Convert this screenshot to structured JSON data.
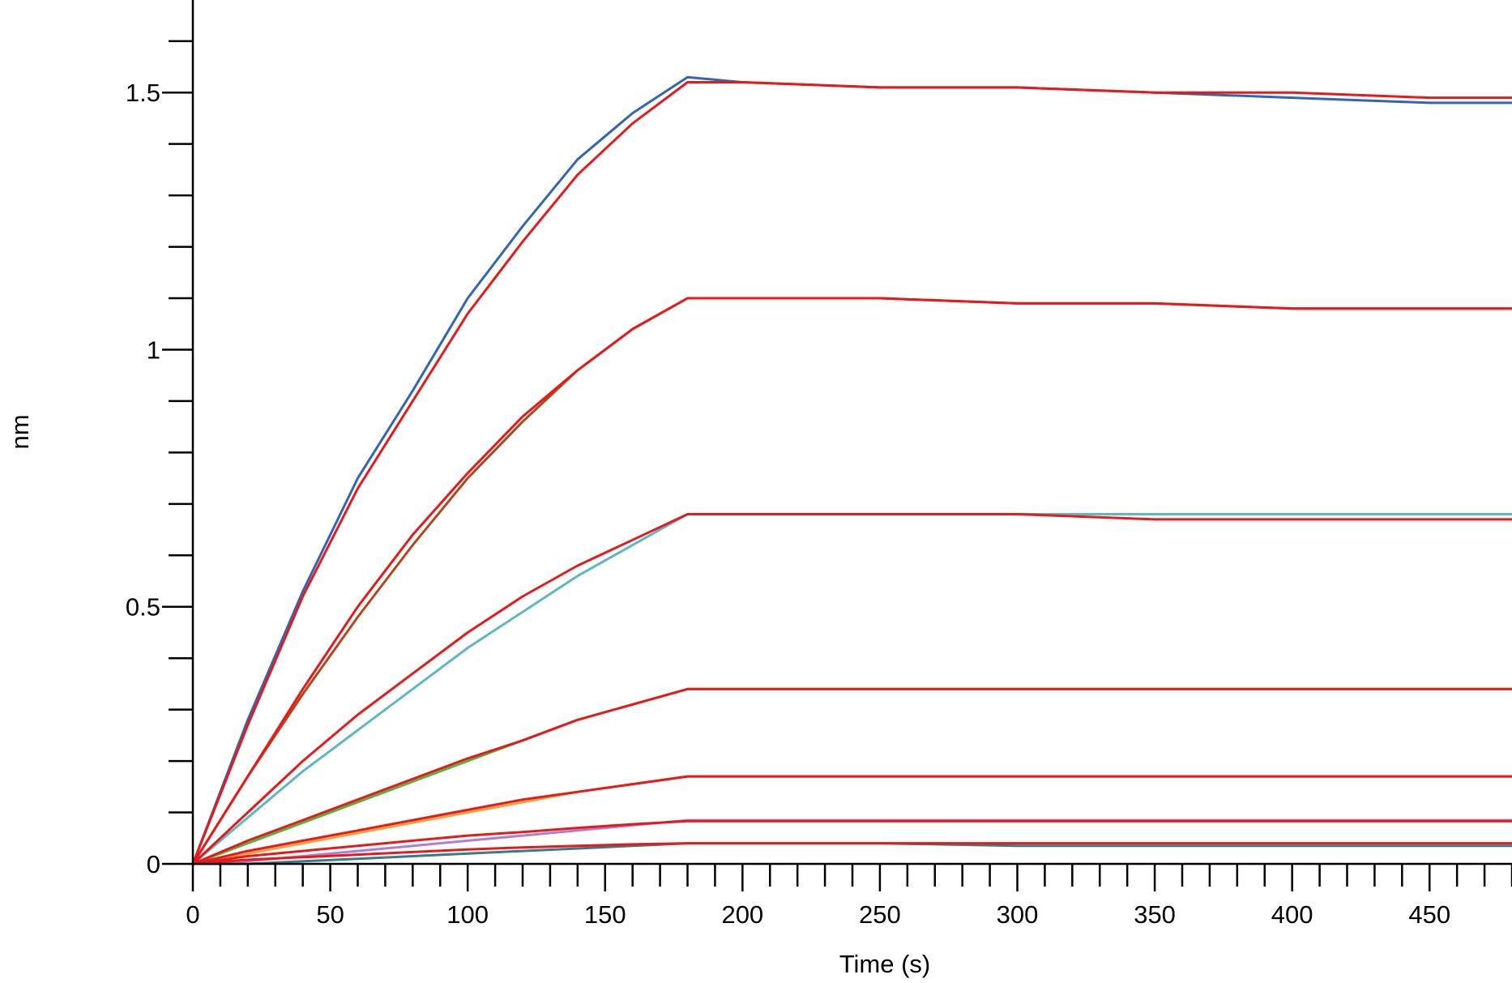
{
  "chart_data": {
    "type": "line",
    "title": "",
    "xlabel": "Time (s)",
    "ylabel": "nm",
    "xlim": [
      0,
      480
    ],
    "ylim": [
      0,
      1.68
    ],
    "x_ticks": [
      0,
      50,
      100,
      150,
      200,
      250,
      300,
      350,
      400,
      450
    ],
    "x_tick_labels": [
      "0",
      "50",
      "100",
      "150",
      "200",
      "250",
      "300",
      "350",
      "400",
      "450"
    ],
    "y_ticks": [
      0,
      0.5,
      1,
      1.5
    ],
    "y_tick_labels": [
      "0",
      "0.5",
      "1",
      "1.5"
    ],
    "grid": false,
    "legend": "none",
    "association_end": 180,
    "series": [
      {
        "color": "#3465b4",
        "fit_color": "#e41a1c",
        "x": [
          0,
          20,
          40,
          60,
          80,
          100,
          120,
          140,
          160,
          180,
          200,
          250,
          300,
          350,
          400,
          450,
          480
        ],
        "y": [
          0,
          0.28,
          0.53,
          0.75,
          0.92,
          1.1,
          1.24,
          1.37,
          1.46,
          1.53,
          1.52,
          1.51,
          1.51,
          1.5,
          1.49,
          1.48,
          1.48
        ],
        "fit_y": [
          0,
          0.27,
          0.52,
          0.73,
          0.9,
          1.07,
          1.21,
          1.34,
          1.44,
          1.52,
          1.52,
          1.51,
          1.51,
          1.5,
          1.5,
          1.49,
          1.49
        ]
      },
      {
        "color": "#b5461a",
        "fit_color": "#e41a1c",
        "x": [
          0,
          20,
          40,
          60,
          80,
          100,
          120,
          140,
          160,
          180,
          200,
          250,
          300,
          350,
          400,
          450,
          480
        ],
        "y": [
          0,
          0.17,
          0.33,
          0.48,
          0.62,
          0.75,
          0.86,
          0.96,
          1.04,
          1.1,
          1.1,
          1.1,
          1.09,
          1.09,
          1.08,
          1.08,
          1.08
        ],
        "fit_y": [
          0,
          0.17,
          0.34,
          0.5,
          0.64,
          0.76,
          0.87,
          0.96,
          1.04,
          1.1,
          1.1,
          1.1,
          1.09,
          1.09,
          1.08,
          1.08,
          1.08
        ]
      },
      {
        "color": "#5fb6c4",
        "fit_color": "#e41a1c",
        "x": [
          0,
          20,
          40,
          60,
          80,
          100,
          120,
          140,
          160,
          180,
          200,
          250,
          300,
          350,
          400,
          450,
          480
        ],
        "y": [
          0,
          0.09,
          0.18,
          0.26,
          0.34,
          0.42,
          0.49,
          0.56,
          0.62,
          0.68,
          0.68,
          0.68,
          0.68,
          0.68,
          0.68,
          0.68,
          0.68
        ],
        "fit_y": [
          0,
          0.1,
          0.2,
          0.29,
          0.37,
          0.45,
          0.52,
          0.58,
          0.63,
          0.68,
          0.68,
          0.68,
          0.68,
          0.67,
          0.67,
          0.67,
          0.67
        ]
      },
      {
        "color": "#52b43c",
        "fit_color": "#e41a1c",
        "x": [
          0,
          20,
          40,
          60,
          80,
          100,
          120,
          140,
          160,
          180,
          200,
          250,
          300,
          350,
          400,
          450,
          480
        ],
        "y": [
          0,
          0.04,
          0.08,
          0.12,
          0.16,
          0.2,
          0.24,
          0.28,
          0.31,
          0.34,
          0.34,
          0.34,
          0.34,
          0.34,
          0.34,
          0.34,
          0.34
        ],
        "fit_y": [
          0,
          0.045,
          0.085,
          0.125,
          0.165,
          0.205,
          0.24,
          0.28,
          0.31,
          0.34,
          0.34,
          0.34,
          0.34,
          0.34,
          0.34,
          0.34,
          0.34
        ]
      },
      {
        "color": "#f4a03a",
        "fit_color": "#e41a1c",
        "x": [
          0,
          20,
          40,
          60,
          80,
          100,
          120,
          140,
          160,
          180,
          200,
          250,
          300,
          350,
          400,
          450,
          480
        ],
        "y": [
          0,
          0.02,
          0.04,
          0.06,
          0.08,
          0.1,
          0.12,
          0.14,
          0.155,
          0.17,
          0.17,
          0.17,
          0.17,
          0.17,
          0.17,
          0.17,
          0.17
        ],
        "fit_y": [
          0,
          0.025,
          0.045,
          0.065,
          0.085,
          0.105,
          0.125,
          0.14,
          0.155,
          0.17,
          0.17,
          0.17,
          0.17,
          0.17,
          0.17,
          0.17,
          0.17
        ]
      },
      {
        "color": "#b47ccc",
        "fit_color": "#e41a1c",
        "x": [
          0,
          20,
          40,
          60,
          80,
          100,
          120,
          140,
          160,
          180,
          200,
          250,
          300,
          350,
          400,
          450,
          480
        ],
        "y": [
          0,
          0.005,
          0.015,
          0.025,
          0.035,
          0.045,
          0.055,
          0.065,
          0.075,
          0.085,
          0.085,
          0.085,
          0.085,
          0.085,
          0.085,
          0.085,
          0.085
        ],
        "fit_y": [
          0,
          0.015,
          0.025,
          0.035,
          0.045,
          0.055,
          0.062,
          0.07,
          0.077,
          0.083,
          0.083,
          0.083,
          0.083,
          0.083,
          0.083,
          0.083,
          0.083
        ]
      },
      {
        "color": "#3a7a86",
        "fit_color": "#e41a1c",
        "x": [
          0,
          20,
          40,
          60,
          80,
          100,
          120,
          140,
          160,
          180,
          200,
          250,
          300,
          350,
          400,
          450,
          480
        ],
        "y": [
          0,
          0.0,
          0.005,
          0.01,
          0.015,
          0.02,
          0.025,
          0.03,
          0.035,
          0.04,
          0.04,
          0.04,
          0.035,
          0.035,
          0.035,
          0.035,
          0.035
        ],
        "fit_y": [
          0,
          0.008,
          0.013,
          0.018,
          0.023,
          0.028,
          0.032,
          0.035,
          0.038,
          0.04,
          0.04,
          0.04,
          0.04,
          0.04,
          0.04,
          0.04,
          0.04
        ]
      }
    ]
  }
}
